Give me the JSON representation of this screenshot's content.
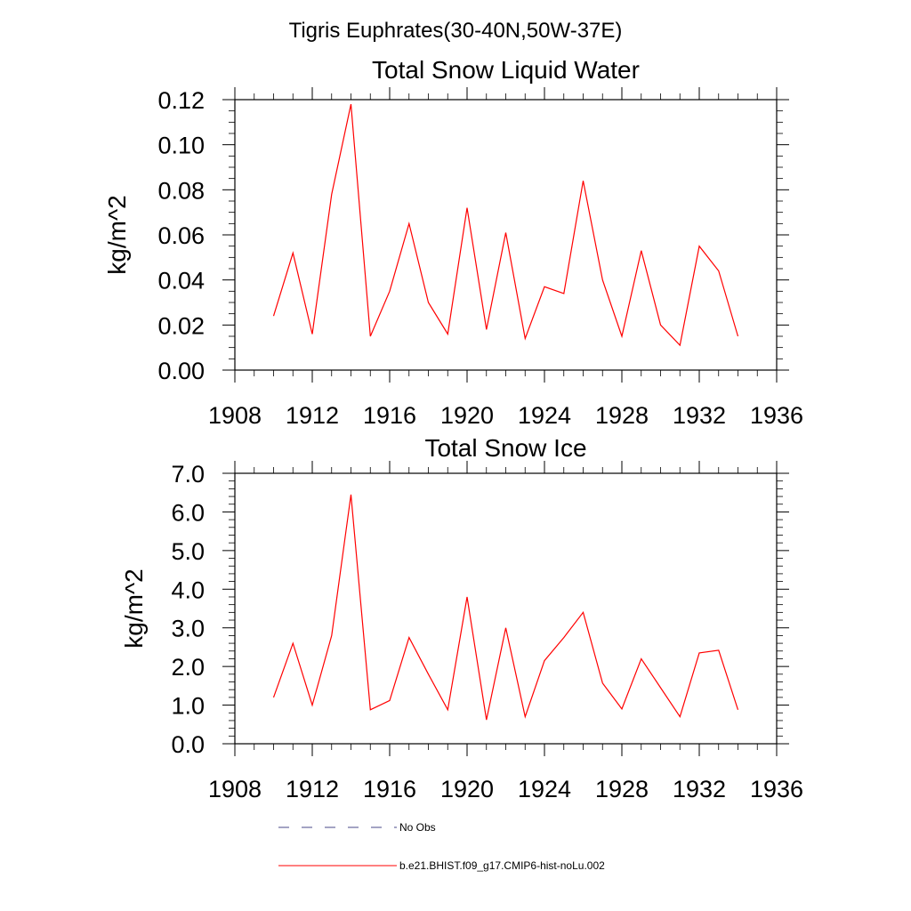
{
  "figure": {
    "title": "Tigris Euphrates(30-40N,50W-37E)"
  },
  "colors": {
    "series": "#ff0000",
    "no_obs": "#4a4a8a",
    "axis": "#000000"
  },
  "legend": {
    "placement": "bottom",
    "entries": [
      {
        "label": "No Obs",
        "style": "dashed"
      },
      {
        "label": "b.e21.BHIST.f09_g17.CMIP6-hist-noLu.002",
        "style": "solid"
      }
    ]
  },
  "chart_data": [
    {
      "type": "line",
      "title": "Total Snow Liquid Water",
      "xlabel": "",
      "ylabel": "kg/m^2",
      "xlim": [
        1908,
        1936
      ],
      "ylim": [
        0,
        0.12
      ],
      "x_ticks": [
        "1908",
        "1912",
        "1916",
        "1920",
        "1924",
        "1928",
        "1932",
        "1936"
      ],
      "y_ticks": [
        "0.00",
        "0.02",
        "0.04",
        "0.06",
        "0.08",
        "0.10",
        "0.12"
      ],
      "grid": false,
      "x": [
        1910,
        1911,
        1912,
        1913,
        1914,
        1915,
        1916,
        1917,
        1918,
        1919,
        1920,
        1921,
        1922,
        1923,
        1924,
        1925,
        1926,
        1927,
        1928,
        1929,
        1930,
        1931,
        1932,
        1933,
        1934
      ],
      "series": [
        {
          "name": "b.e21.BHIST.f09_g17.CMIP6-hist-noLu.002",
          "values": [
            0.024,
            0.052,
            0.016,
            0.078,
            0.118,
            0.015,
            0.035,
            0.065,
            0.03,
            0.016,
            0.072,
            0.018,
            0.061,
            0.014,
            0.037,
            0.034,
            0.084,
            0.04,
            0.015,
            0.053,
            0.02,
            0.011,
            0.055,
            0.044,
            0.015
          ]
        }
      ]
    },
    {
      "type": "line",
      "title": "Total Snow Ice",
      "xlabel": "",
      "ylabel": "kg/m^2",
      "xlim": [
        1908,
        1936
      ],
      "ylim": [
        0,
        7
      ],
      "x_ticks": [
        "1908",
        "1912",
        "1916",
        "1920",
        "1924",
        "1928",
        "1932",
        "1936"
      ],
      "y_ticks": [
        "0.0",
        "1.0",
        "2.0",
        "3.0",
        "4.0",
        "5.0",
        "6.0",
        "7.0"
      ],
      "grid": false,
      "x": [
        1910,
        1911,
        1912,
        1913,
        1914,
        1915,
        1916,
        1917,
        1918,
        1919,
        1920,
        1921,
        1922,
        1923,
        1924,
        1925,
        1926,
        1927,
        1928,
        1929,
        1930,
        1931,
        1932,
        1933,
        1934
      ],
      "series": [
        {
          "name": "b.e21.BHIST.f09_g17.CMIP6-hist-noLu.002",
          "values": [
            1.2,
            2.6,
            1.0,
            2.8,
            6.45,
            0.88,
            1.12,
            2.75,
            1.8,
            0.88,
            3.8,
            0.62,
            3.0,
            0.7,
            2.15,
            2.75,
            3.4,
            1.57,
            0.9,
            2.2,
            1.45,
            0.7,
            2.35,
            2.42,
            0.88
          ]
        }
      ]
    }
  ]
}
